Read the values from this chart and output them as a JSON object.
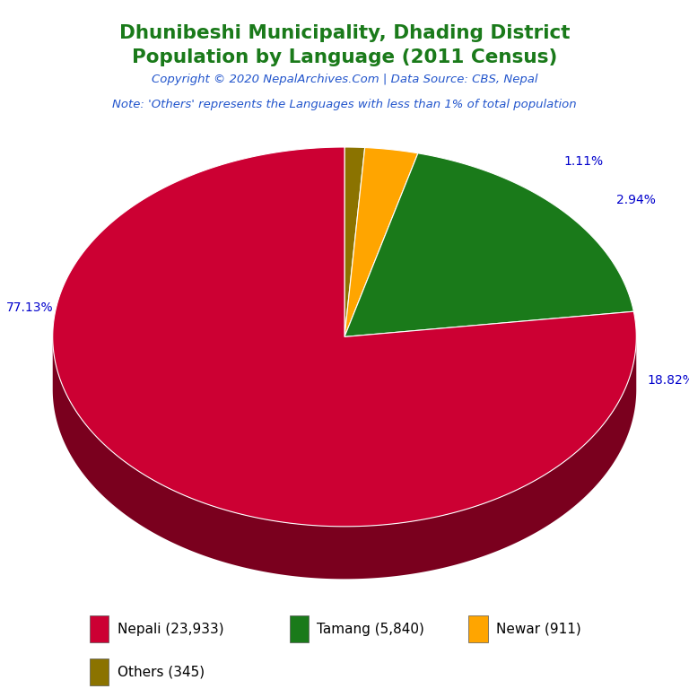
{
  "title_line1": "Dhunibeshi Municipality, Dhading District",
  "title_line2": "Population by Language (2011 Census)",
  "title_color": "#1a7a1a",
  "copyright_text": "Copyright © 2020 NepalArchives.Com | Data Source: CBS, Nepal",
  "copyright_color": "#2255cc",
  "note_text": "Note: 'Others' represents the Languages with less than 1% of total population",
  "note_color": "#2255cc",
  "labels": [
    "Nepali",
    "Tamang",
    "Newar",
    "Others"
  ],
  "values": [
    23933,
    5840,
    911,
    345
  ],
  "percentages": [
    77.13,
    18.82,
    2.94,
    1.11
  ],
  "colors": [
    "#cc0033",
    "#1a7a1a",
    "#ffa500",
    "#8b7300"
  ],
  "shadow_colors": [
    "#7a001e",
    "#0d4d0d",
    "#b37400",
    "#5c4d00"
  ],
  "legend_labels": [
    "Nepali (23,933)",
    "Tamang (5,840)",
    "Newar (911)",
    "Others (345)"
  ],
  "pct_label_color": "#0000cc",
  "background_color": "#ffffff",
  "startangle": 90
}
